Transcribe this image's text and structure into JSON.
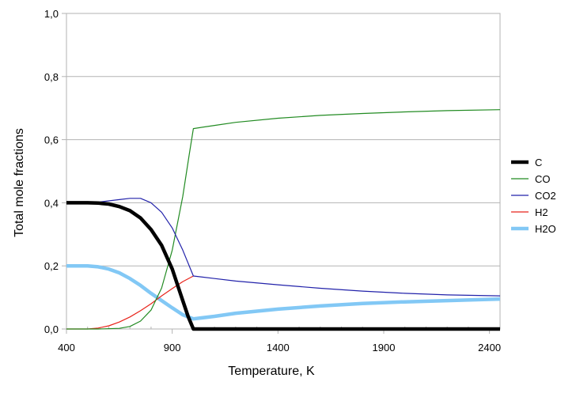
{
  "chart_data": {
    "type": "line",
    "title": "",
    "xlabel": "Temperature, K",
    "ylabel": "Total mole fractions",
    "xlim": [
      400,
      2450
    ],
    "ylim": [
      0,
      1.0
    ],
    "x_ticks": [
      400,
      900,
      1400,
      1900,
      2400
    ],
    "x_tick_labels": [
      "400",
      "900",
      "1400",
      "1900",
      "2400"
    ],
    "y_ticks": [
      0,
      0.2,
      0.4,
      0.6,
      0.8,
      1.0
    ],
    "y_tick_labels": [
      "0,0",
      "0,2",
      "0,4",
      "0,6",
      "0,8",
      "1,0"
    ],
    "grid": "horizontal",
    "legend_position": "right",
    "series": [
      {
        "name": "C",
        "color": "#000000",
        "x": [
          400,
          500,
          550,
          600,
          650,
          700,
          750,
          800,
          850,
          900,
          925,
          950,
          975,
          1000,
          1100,
          1200,
          1400,
          1600,
          1800,
          2000,
          2200,
          2450
        ],
        "y": [
          0.4,
          0.4,
          0.399,
          0.396,
          0.388,
          0.375,
          0.352,
          0.315,
          0.265,
          0.19,
          0.14,
          0.09,
          0.04,
          0.0,
          0.0,
          0.0,
          0.0,
          0.0,
          0.0,
          0.0,
          0.0,
          0.0
        ]
      },
      {
        "name": "CO",
        "color": "#228b22",
        "x": [
          400,
          550,
          650,
          700,
          750,
          800,
          850,
          900,
          950,
          980,
          1000,
          1100,
          1200,
          1400,
          1600,
          1800,
          2000,
          2200,
          2450
        ],
        "y": [
          0.0,
          0.0,
          0.002,
          0.008,
          0.025,
          0.06,
          0.13,
          0.25,
          0.42,
          0.55,
          0.635,
          0.645,
          0.655,
          0.668,
          0.677,
          0.683,
          0.688,
          0.692,
          0.695
        ]
      },
      {
        "name": "CO2",
        "color": "#2222aa",
        "x": [
          400,
          550,
          650,
          700,
          750,
          800,
          850,
          900,
          950,
          1000,
          1100,
          1200,
          1400,
          1600,
          1800,
          2000,
          2200,
          2450
        ],
        "y": [
          0.4,
          0.402,
          0.41,
          0.414,
          0.414,
          0.4,
          0.37,
          0.32,
          0.25,
          0.168,
          0.16,
          0.152,
          0.14,
          0.129,
          0.12,
          0.113,
          0.108,
          0.105
        ]
      },
      {
        "name": "H2",
        "color": "#e8231a",
        "x": [
          400,
          500,
          550,
          600,
          650,
          700,
          750,
          800,
          850,
          900,
          950,
          1000
        ],
        "y": [
          0.0,
          0.0,
          0.003,
          0.01,
          0.022,
          0.038,
          0.058,
          0.08,
          0.105,
          0.128,
          0.15,
          0.168
        ]
      },
      {
        "name": "H2O",
        "color": "#82c8f5",
        "x": [
          400,
          500,
          550,
          600,
          650,
          700,
          750,
          800,
          850,
          900,
          950,
          1000,
          1100,
          1200,
          1400,
          1600,
          1800,
          2000,
          2200,
          2450
        ],
        "y": [
          0.2,
          0.2,
          0.197,
          0.19,
          0.178,
          0.16,
          0.138,
          0.113,
          0.09,
          0.067,
          0.045,
          0.032,
          0.04,
          0.05,
          0.063,
          0.073,
          0.081,
          0.086,
          0.09,
          0.095
        ]
      }
    ]
  }
}
